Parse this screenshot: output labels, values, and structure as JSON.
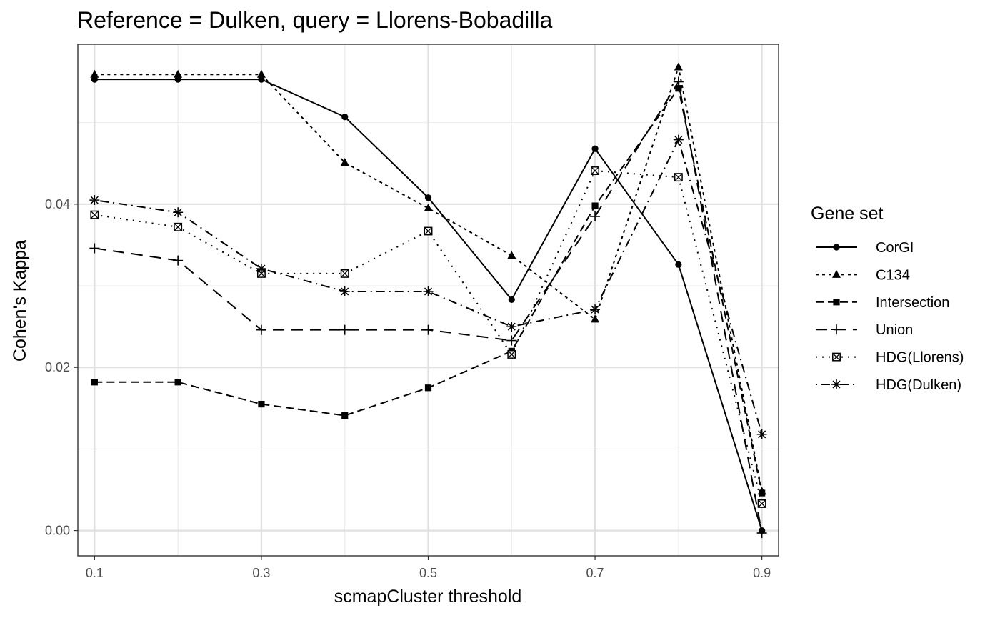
{
  "chart_data": {
    "type": "line",
    "title": "Reference = Dulken, query = Llorens-Bobadilla",
    "xlabel": "scmapCluster threshold",
    "ylabel": "Cohen's Kappa",
    "x": [
      0.1,
      0.2,
      0.3,
      0.4,
      0.5,
      0.6,
      0.7,
      0.8,
      0.9
    ],
    "xlim": [
      0.08,
      0.92
    ],
    "ylim": [
      -0.0031,
      0.0596
    ],
    "x_ticks": [
      "0.1",
      "0.3",
      "0.5",
      "0.7",
      "0.9"
    ],
    "y_ticks": [
      "0.00",
      "0.02",
      "0.04"
    ],
    "grid": true,
    "legend_title": "Gene set",
    "legend_position": "right",
    "series": [
      {
        "name": "CorGI",
        "marker": "circle",
        "dash": "solid",
        "values": [
          0.0553,
          0.0553,
          0.0553,
          0.0507,
          0.0408,
          0.0283,
          0.0468,
          0.0326,
          0.0
        ]
      },
      {
        "name": "C134",
        "marker": "triangle",
        "dash": "dotted",
        "values": [
          0.0559,
          0.0559,
          0.0559,
          0.0451,
          0.0395,
          0.0337,
          0.0259,
          0.0568,
          0.0048
        ]
      },
      {
        "name": "Intersection",
        "marker": "square",
        "dash": "dashed",
        "values": [
          0.0182,
          0.0182,
          0.0155,
          0.0141,
          0.0175,
          0.022,
          0.0398,
          0.0542,
          0.0046
        ]
      },
      {
        "name": "Union",
        "marker": "plus",
        "dash": "longdash",
        "values": [
          0.0346,
          0.0331,
          0.0246,
          0.0246,
          0.0246,
          0.0233,
          0.0385,
          0.055,
          -0.0003
        ]
      },
      {
        "name": "HDG(Llorens)",
        "marker": "boxcross",
        "dash": "dotted2",
        "values": [
          0.0387,
          0.0372,
          0.0315,
          0.0315,
          0.0367,
          0.0216,
          0.0441,
          0.0433,
          0.0033
        ]
      },
      {
        "name": "HDG(Dulken)",
        "marker": "asterisk",
        "dash": "dotdash",
        "values": [
          0.0405,
          0.039,
          0.0321,
          0.0293,
          0.0293,
          0.025,
          0.0271,
          0.0479,
          0.0118
        ]
      }
    ]
  }
}
